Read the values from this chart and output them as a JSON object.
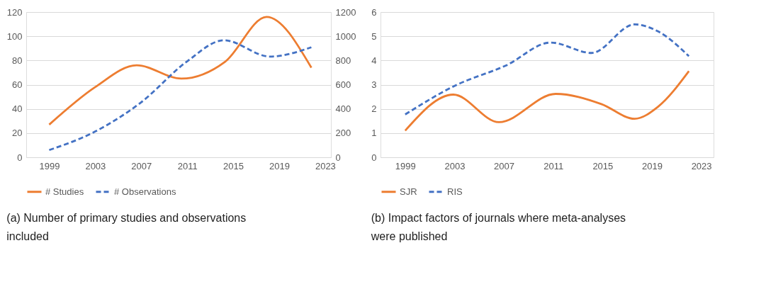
{
  "chart_data": [
    {
      "type": "line",
      "title": "(a) Number of primary studies and observations included",
      "xlim": [
        1997,
        2023.5
      ],
      "xticks": [
        1999,
        2003,
        2007,
        2011,
        2015,
        2019,
        2023
      ],
      "ylim": [
        0,
        120
      ],
      "yticks": [
        0,
        20,
        40,
        60,
        80,
        100,
        120
      ],
      "y2lim": [
        0,
        1200
      ],
      "y2ticks": [
        0,
        200,
        400,
        600,
        800,
        1000,
        1200
      ],
      "grid": "y",
      "legend": "bottom",
      "series": [
        {
          "name": "# Studies",
          "color": "#ed7d31",
          "line_style": "solid",
          "x": [
            1999,
            2003,
            2006.6,
            2010.5,
            2014.3,
            2017.9,
            2021.8
          ],
          "values": [
            27,
            58,
            76,
            65,
            79,
            116,
            74
          ]
        },
        {
          "name": "# Observations",
          "color": "#4472c4",
          "line_style": "dashed",
          "axis": "y2",
          "x": [
            1999,
            2003,
            2007,
            2011,
            2014.2,
            2018.2,
            2021.8
          ],
          "values": [
            60,
            213,
            455,
            793,
            967,
            832,
            909
          ]
        }
      ]
    },
    {
      "type": "line",
      "title": "(b) Impact factors of journals where meta-analyses were published",
      "xlim": [
        1997,
        2024
      ],
      "xticks": [
        1999,
        2003,
        2007,
        2011,
        2015,
        2019,
        2023
      ],
      "ylim": [
        0,
        6
      ],
      "yticks": [
        0,
        1,
        2,
        3,
        4,
        5,
        6
      ],
      "grid": "y",
      "legend": "bottom",
      "series": [
        {
          "name": "SJR",
          "color": "#ed7d31",
          "line_style": "solid",
          "x": [
            1999,
            2002.9,
            2006.6,
            2011.2,
            2014.9,
            2017.6,
            2019.5,
            2022
          ],
          "values": [
            1.1,
            2.59,
            1.45,
            2.62,
            2.2,
            1.59,
            2.09,
            3.56
          ]
        },
        {
          "name": "RIS",
          "color": "#4472c4",
          "line_style": "dashed",
          "x": [
            1999,
            2003,
            2007.2,
            2010.8,
            2014.1,
            2017.6,
            2019.5,
            2022
          ],
          "values": [
            1.77,
            2.95,
            3.8,
            4.74,
            4.31,
            5.49,
            5.2,
            4.18
          ]
        }
      ]
    }
  ]
}
